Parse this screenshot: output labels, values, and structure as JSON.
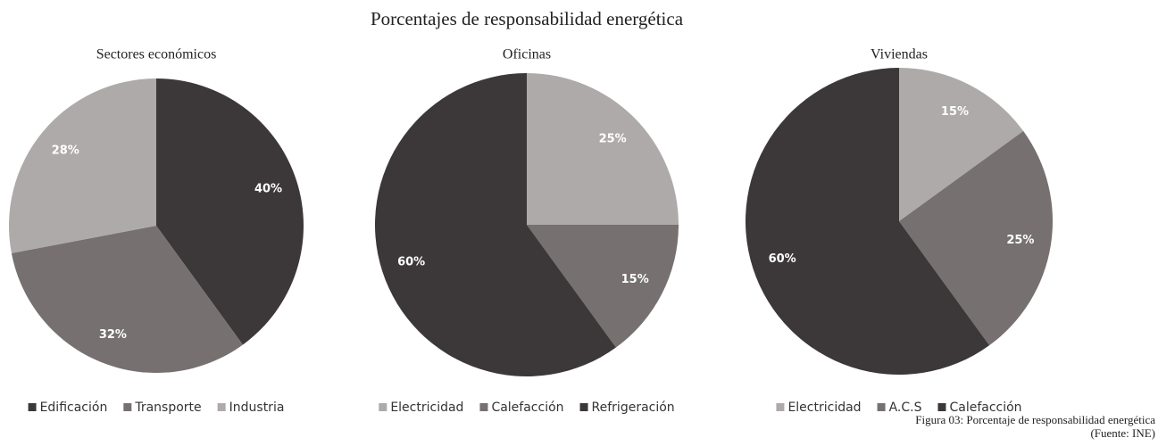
{
  "title": "Porcentajes de responsabilidad energética",
  "caption": [
    "Figura 03: Porcentaje de responsabilidad energética",
    "(Fuente: INE)"
  ],
  "chart_data": [
    {
      "type": "pie",
      "title": "Sectores económicos",
      "categories": [
        "Edificación",
        "Transporte",
        "Industria"
      ],
      "values": [
        40,
        32,
        28
      ],
      "value_labels": [
        "40%",
        "32%",
        "28%"
      ],
      "colors": [
        "#3c3839",
        "#767070",
        "#aeaaaa"
      ]
    },
    {
      "type": "pie",
      "title": "Oficinas",
      "categories": [
        "Electricidad",
        "Calefacción",
        "Refrigeración"
      ],
      "values": [
        25,
        15,
        60
      ],
      "value_labels": [
        "25%",
        "15%",
        "60%"
      ],
      "colors": [
        "#aeaaaa",
        "#767070",
        "#3c3839"
      ]
    },
    {
      "type": "pie",
      "title": "Viviendas",
      "categories": [
        "Electricidad",
        "A.C.S",
        "Calefacción"
      ],
      "values": [
        15,
        25,
        60
      ],
      "value_labels": [
        "15%",
        "25%",
        "60%"
      ],
      "colors": [
        "#aeaaaa",
        "#767070",
        "#3c3839"
      ]
    }
  ]
}
